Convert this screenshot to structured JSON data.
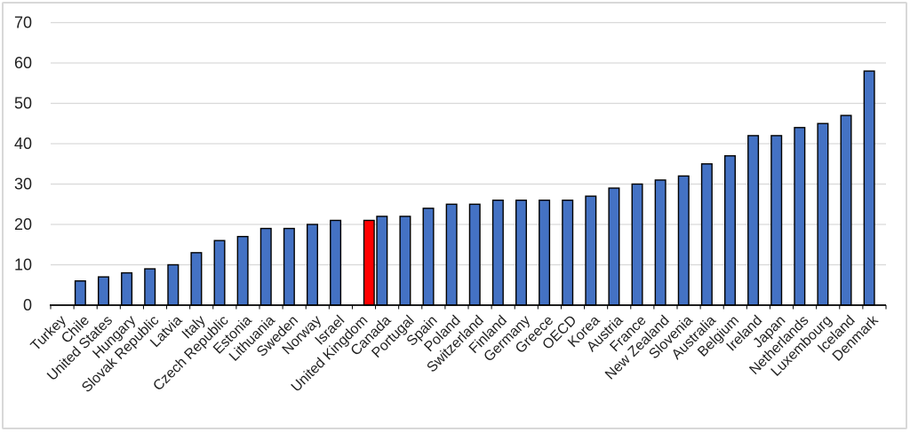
{
  "window": {
    "background": "#ffffff",
    "frame_border_color": "#d8d8d8"
  },
  "chart_data": {
    "type": "bar",
    "title": "",
    "xlabel": "",
    "ylabel": "",
    "categories": [
      "Turkey",
      "Chile",
      "United States",
      "Hungary",
      "Slovak Republic",
      "Latvia",
      "Italy",
      "Czech Republic",
      "Estonia",
      "Lithuania",
      "Sweden",
      "Norway",
      "Israel",
      "United Kingdom",
      "Canada",
      "Portugal",
      "Spain",
      "Poland",
      "Switzerland",
      "Finland",
      "Germany",
      "Greece",
      "OECD",
      "Korea",
      "Austria",
      "France",
      "New Zealand",
      "Slovenia",
      "Australia",
      "Belgium",
      "Ireland",
      "Japan",
      "Netherlands",
      "Luxembourg",
      "Iceland",
      "Denmark"
    ],
    "values": [
      0,
      6,
      7,
      8,
      9,
      10,
      13,
      16,
      17,
      19,
      19,
      20,
      21,
      21,
      22,
      22,
      24,
      25,
      25,
      26,
      26,
      26,
      26,
      27,
      29,
      30,
      31,
      32,
      35,
      37,
      42,
      42,
      44,
      45,
      47,
      58
    ],
    "highlight_category": "United Kingdom",
    "bar_color": "#4472c4",
    "highlight_color": "#ff0000",
    "bar_border_color": "#000000",
    "ylim": [
      0,
      70
    ],
    "ytick_step": 10,
    "ytick_labels": [
      "0",
      "10",
      "20",
      "30",
      "40",
      "50",
      "60",
      "70"
    ],
    "grid": true,
    "gridline_color": "#d9d9d9",
    "axis_color": "#000000",
    "label_color": "#1f1f1f",
    "legend": "none"
  }
}
